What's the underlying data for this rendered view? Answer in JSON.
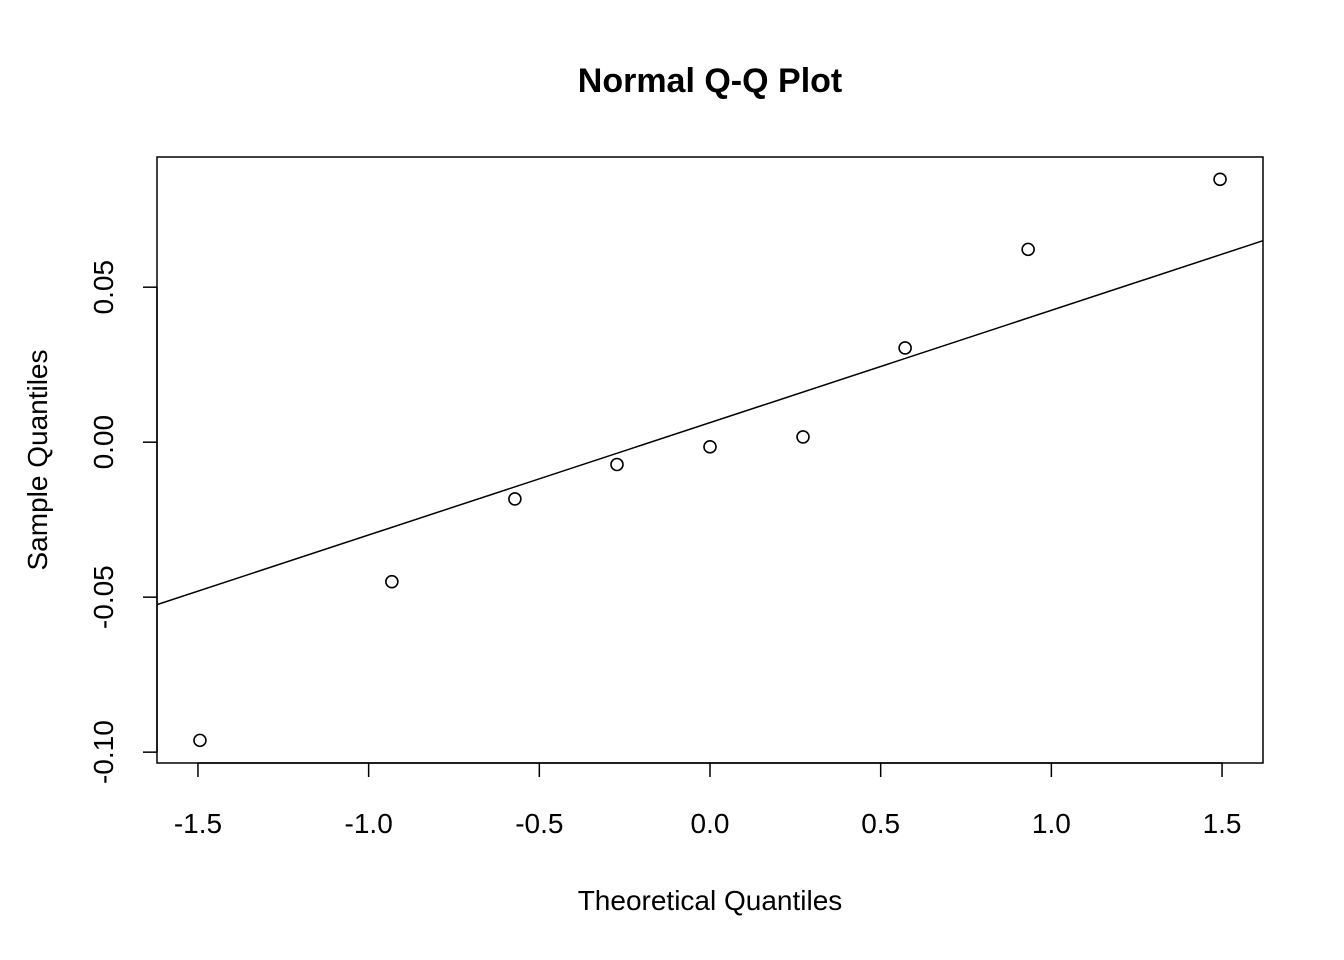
{
  "chart_data": {
    "type": "scatter",
    "title": "Normal Q-Q Plot",
    "xlabel": "Theoretical Quantiles",
    "ylabel": "Sample Quantiles",
    "xlim": [
      -1.62,
      1.62
    ],
    "ylim": [
      -0.1035,
      0.092
    ],
    "x_ticks": [
      -1.5,
      -1.0,
      -0.5,
      0.0,
      0.5,
      1.0,
      1.5
    ],
    "x_tick_labels": [
      "-1.5",
      "-1.0",
      "-0.5",
      "0.0",
      "0.5",
      "1.0",
      "1.5"
    ],
    "y_ticks": [
      -0.1,
      -0.05,
      0.0,
      0.05
    ],
    "y_tick_labels": [
      "-0.10",
      "-0.05",
      "0.00",
      "0.05"
    ],
    "points": {
      "x": [
        -1.4942,
        -0.932,
        -0.5716,
        -0.2725,
        0.0,
        0.2725,
        0.5716,
        0.932,
        1.4942
      ],
      "y": [
        -0.0962,
        -0.045,
        -0.0183,
        -0.0072,
        -0.0015,
        0.0017,
        0.0304,
        0.0622,
        0.0848
      ]
    },
    "reference_line": {
      "x": [
        -1.62,
        1.62
      ],
      "y": [
        -0.0524,
        0.065
      ]
    },
    "marker": "open-circle",
    "grid": false,
    "legend": "none",
    "colors": {
      "points": "#000000",
      "line": "#000000",
      "frame": "#000000"
    }
  }
}
